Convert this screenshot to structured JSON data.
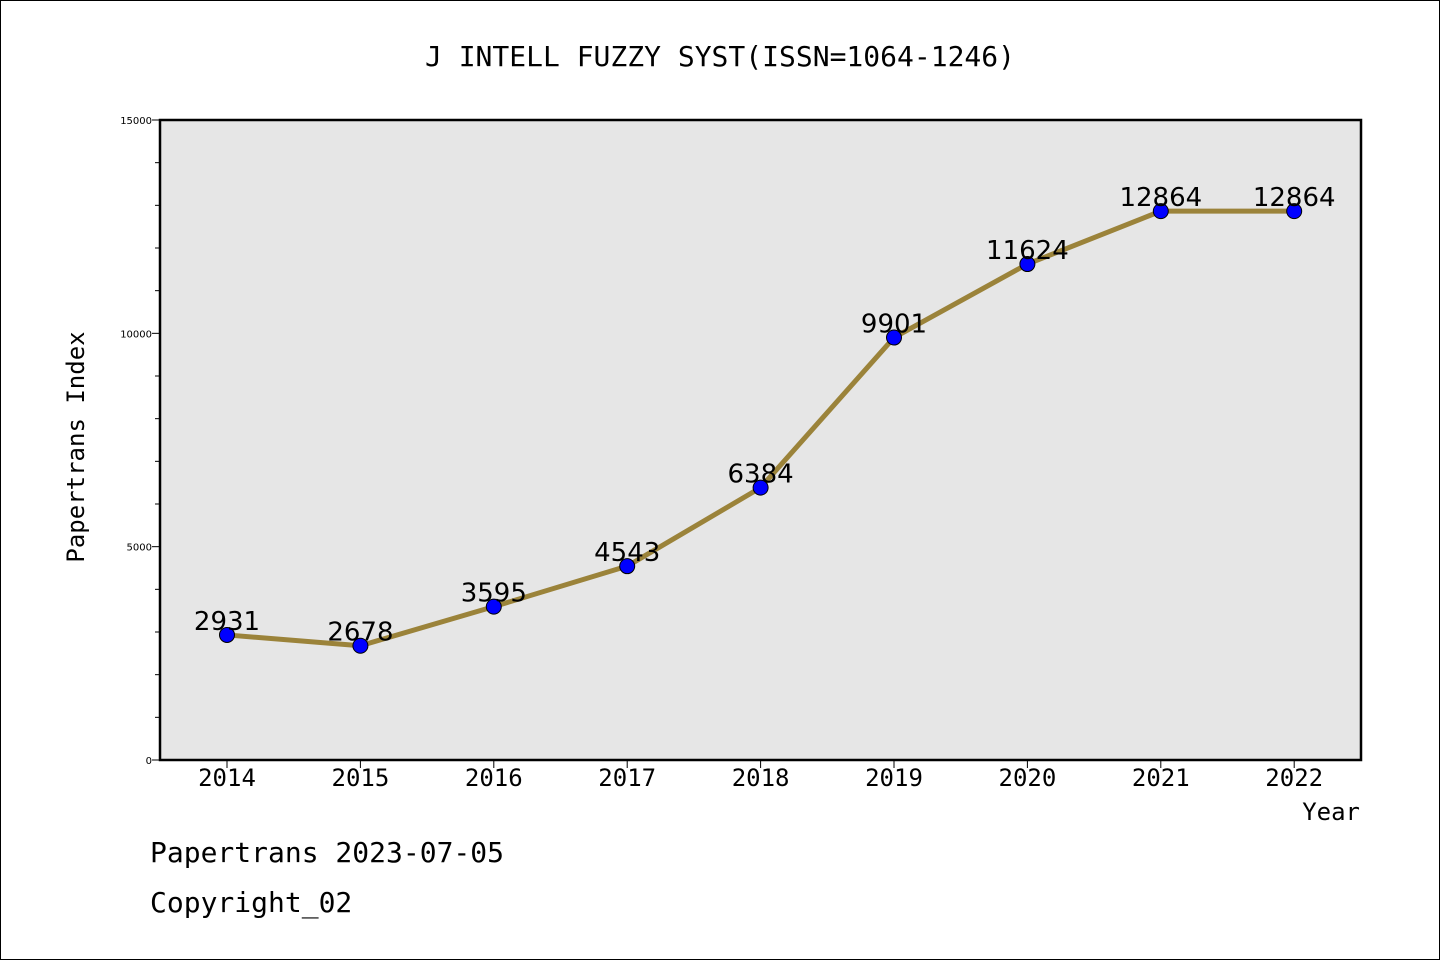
{
  "chart_data": {
    "type": "line",
    "title": "J INTELL FUZZY SYST(ISSN=1064-1246)",
    "xlabel": "Year",
    "ylabel": "Papertrans Index",
    "categories": [
      "2014",
      "2015",
      "2016",
      "2017",
      "2018",
      "2019",
      "2020",
      "2021",
      "2022"
    ],
    "series": [
      {
        "values": [
          2931,
          2678,
          3595,
          4543,
          6384,
          9901,
          11624,
          12864,
          12864
        ]
      }
    ],
    "data_labels": [
      "2931",
      "2678",
      "3595",
      "4543",
      "6384",
      "9901",
      "11624",
      "12864",
      "12864"
    ],
    "ylim": [
      0,
      15000
    ],
    "yticks": [
      "0",
      "5000",
      "10000",
      "15000"
    ],
    "grid": false,
    "plot_background": "#e6e6e6",
    "line_color": "#9b833a",
    "marker_color": "#0000ff"
  },
  "footer": {
    "date_text": "Papertrans 2023-07-05",
    "copyright_text": "Copyright_02"
  }
}
